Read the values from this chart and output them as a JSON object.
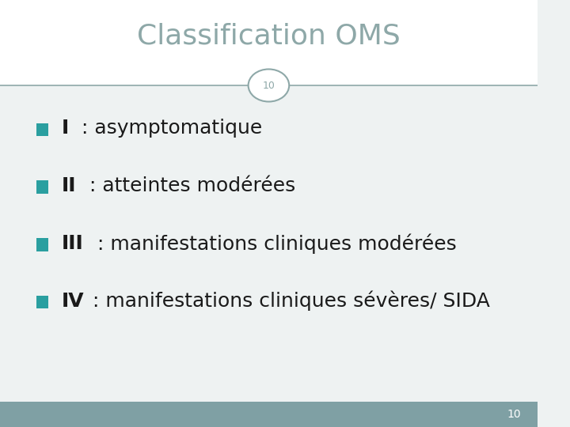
{
  "title": "Classification OMS",
  "title_color": "#8ea8a8",
  "title_fontsize": 26,
  "slide_number": "10",
  "bg_color": "#eef2f2",
  "header_bg": "#ffffff",
  "footer_bg": "#7fa0a4",
  "footer_text_color": "#ffffff",
  "footer_fontsize": 10,
  "line_color": "#8ea8a8",
  "circle_color": "#8ea8a8",
  "circle_bg": "#ffffff",
  "bullet_color": "#2a9fa0",
  "bullet_items": [
    {
      "roman": "I",
      "rest": " : asymptomatique"
    },
    {
      "roman": "II",
      "rest": " : atteintes modérées"
    },
    {
      "roman": "III",
      "rest": " : manifestations cliniques modérées"
    },
    {
      "roman": "IV",
      "rest": " : manifestations cliniques sévères/ SIDA"
    }
  ],
  "bullet_fontsize": 18,
  "roman_fontsize": 18,
  "text_color": "#1a1a1a"
}
